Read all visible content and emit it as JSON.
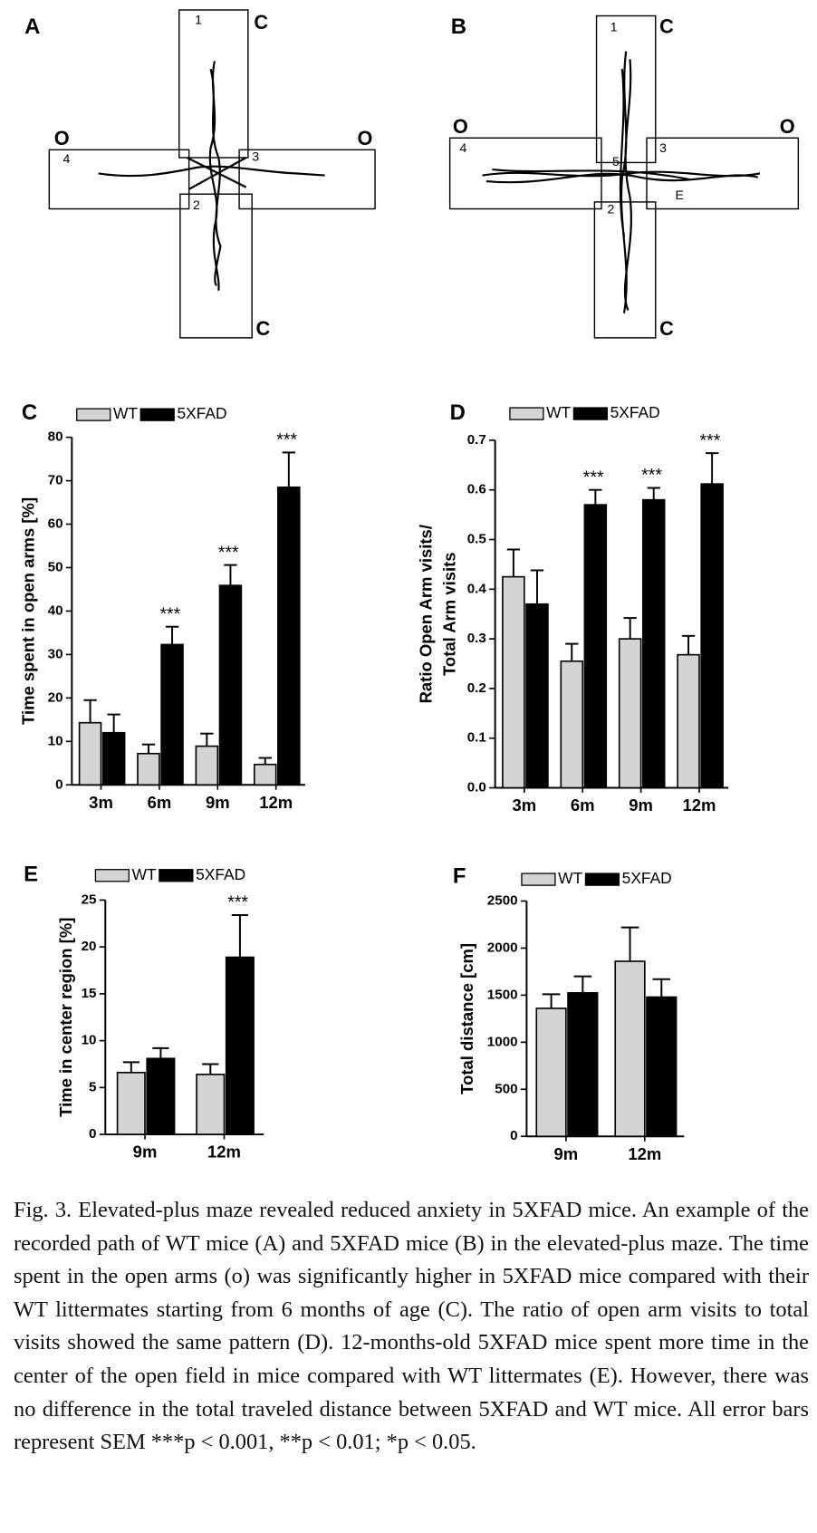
{
  "maze_panels": [
    {
      "label": "A",
      "texts": [
        "1",
        "C",
        "O",
        "4",
        "3",
        "O",
        "2",
        "C"
      ]
    },
    {
      "label": "B",
      "texts": [
        "1",
        "C",
        "O",
        "4",
        "5",
        "3",
        "O",
        "2",
        "E",
        "C"
      ]
    }
  ],
  "chart_data": [
    {
      "type": "bar",
      "panel": "C",
      "ylabel": [
        "Time spent in open arms [%]"
      ],
      "categories": [
        "3m",
        "6m",
        "9m",
        "12m"
      ],
      "series": [
        {
          "name": "WT",
          "color": "#d4d4d4",
          "values": [
            14.3,
            7.2,
            8.9,
            4.7
          ],
          "errors": [
            5.2,
            2.1,
            2.9,
            1.5
          ]
        },
        {
          "name": "5XFAD",
          "color": "#000000",
          "values": [
            12,
            32.3,
            45.9,
            68.5
          ],
          "errors": [
            4.2,
            4.1,
            4.7,
            8.0
          ]
        }
      ],
      "ylim": [
        0,
        80
      ],
      "yticks": [
        0,
        10,
        20,
        30,
        40,
        50,
        60,
        70,
        80
      ],
      "annotations": [
        {
          "text": "***",
          "category": "6m"
        },
        {
          "text": "***",
          "category": "9m"
        },
        {
          "text": "***",
          "category": "12m"
        }
      ]
    },
    {
      "type": "bar",
      "panel": "D",
      "ylabel": [
        "Ratio Open Arm visits/",
        "Total Arm visits"
      ],
      "categories": [
        "3m",
        "6m",
        "9m",
        "12m"
      ],
      "series": [
        {
          "name": "WT",
          "color": "#d4d4d4",
          "values": [
            0.425,
            0.255,
            0.3,
            0.268
          ],
          "errors": [
            0.055,
            0.035,
            0.042,
            0.038
          ]
        },
        {
          "name": "5XFAD",
          "color": "#000000",
          "values": [
            0.37,
            0.57,
            0.58,
            0.612
          ],
          "errors": [
            0.068,
            0.03,
            0.024,
            0.062
          ]
        }
      ],
      "ylim": [
        0,
        0.7
      ],
      "yticks": [
        {
          "value": 0,
          "label": "0.0"
        },
        0.1,
        0.2,
        0.3,
        0.4,
        0.5,
        0.6,
        0.7
      ],
      "annotations": [
        {
          "text": "***",
          "category": "6m"
        },
        {
          "text": "***",
          "category": "9m"
        },
        {
          "text": "***",
          "category": "12m"
        }
      ]
    },
    {
      "type": "bar",
      "panel": "E",
      "ylabel": [
        "Time in center region [%]"
      ],
      "categories": [
        "9m",
        "12m"
      ],
      "series": [
        {
          "name": "WT",
          "color": "#d4d4d4",
          "values": [
            6.6,
            6.4
          ],
          "errors": [
            1.1,
            1.1
          ]
        },
        {
          "name": "5XFAD",
          "color": "#000000",
          "values": [
            8.1,
            18.9
          ],
          "errors": [
            1.1,
            4.5
          ]
        }
      ],
      "ylim": [
        0,
        25
      ],
      "yticks": [
        0,
        5,
        10,
        15,
        20,
        25
      ],
      "annotations": [
        {
          "text": "***",
          "category": "12m"
        }
      ]
    },
    {
      "type": "bar",
      "panel": "F",
      "ylabel": [
        "Total distance [cm]"
      ],
      "categories": [
        "9m",
        "12m"
      ],
      "series": [
        {
          "name": "WT",
          "color": "#d4d4d4",
          "values": [
            1360,
            1860
          ],
          "errors": [
            150,
            360
          ]
        },
        {
          "name": "5XFAD",
          "color": "#000000",
          "values": [
            1525,
            1480
          ],
          "errors": [
            175,
            190
          ]
        }
      ],
      "ylim": [
        0,
        2500
      ],
      "yticks": [
        0,
        500,
        1000,
        1500,
        2000,
        2500
      ],
      "annotations": []
    }
  ],
  "caption": "Fig. 3. Elevated-plus maze revealed reduced anxiety in 5XFAD mice. An example of the recorded path of WT mice (A) and 5XFAD mice (B) in the elevated-plus maze. The time spent in the open arms (o) was significantly higher in 5XFAD mice compared with their WT littermates starting from 6 months of age (C). The ratio of open arm visits to total visits showed the same pattern (D). 12-months-old 5XFAD mice spent more time in the center of the open field in mice compared with WT littermates (E). However, there was no difference in the total traveled distance between 5XFAD and WT mice. All error bars represent SEM ***p < 0.001, **p < 0.01; *p < 0.05."
}
